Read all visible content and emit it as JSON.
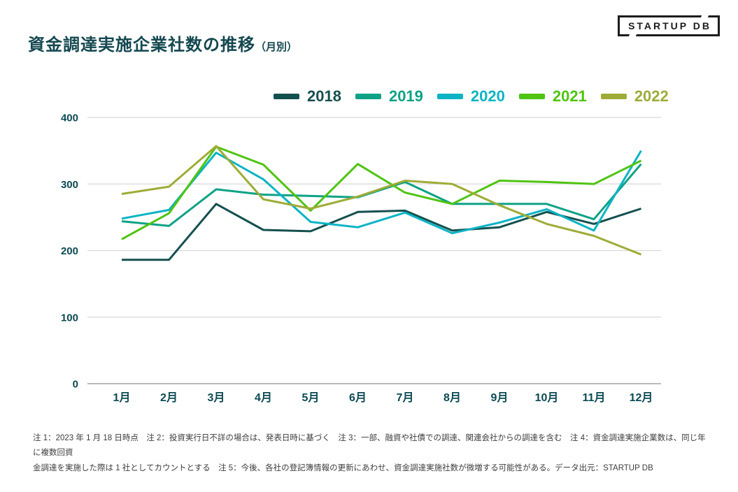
{
  "header": {
    "title_main": "資金調達実施企業社数の推移",
    "title_sub": "（月別）",
    "logo_text": "STARTUP DB"
  },
  "chart_data": {
    "type": "line",
    "title": "資金調達実施企業社数の推移（月別）",
    "categories": [
      "1月",
      "2月",
      "3月",
      "4月",
      "5月",
      "6月",
      "7月",
      "8月",
      "9月",
      "10月",
      "11月",
      "12月"
    ],
    "series": [
      {
        "name": "2018",
        "color": "#14504E",
        "values": [
          186,
          186,
          270,
          231,
          229,
          258,
          260,
          230,
          235,
          258,
          240,
          263
        ]
      },
      {
        "name": "2019",
        "color": "#0FA286",
        "values": [
          244,
          237,
          292,
          284,
          282,
          280,
          303,
          270,
          270,
          270,
          247,
          330
        ]
      },
      {
        "name": "2020",
        "color": "#0DB4C4",
        "values": [
          248,
          261,
          347,
          307,
          243,
          235,
          257,
          226,
          242,
          262,
          230,
          350
        ]
      },
      {
        "name": "2021",
        "color": "#4FC412",
        "values": [
          217,
          256,
          356,
          329,
          260,
          330,
          287,
          270,
          305,
          303,
          300,
          335
        ]
      },
      {
        "name": "2022",
        "color": "#9EAC37",
        "values": [
          285,
          296,
          357,
          277,
          263,
          281,
          305,
          300,
          268,
          240,
          222,
          194
        ]
      }
    ],
    "xlabel": "",
    "ylabel": "",
    "ylim": [
      0,
      400
    ],
    "yticks": [
      0,
      100,
      200,
      300,
      400
    ],
    "grid": true,
    "legend_position": "top",
    "gridline_color": "#d9d9d9",
    "axisline_color": "#8f8f8f"
  },
  "footnotes": {
    "line1": "注 1：2023 年 1 月 18 日時点　注 2：投資実行日不詳の場合は、発表日時に基づく　注 3：一部、融資や社債での調達、関連会社からの調達を含む　注 4：資金調達実施企業数は、同じ年に複数回資",
    "line2": "金調達を実施した際は 1 社としてカウントとする　注 5：今後、各社の登記簿情報の更新にあわせ、資金調達実施社数が微増する可能性がある。データ出元：STARTUP DB"
  }
}
